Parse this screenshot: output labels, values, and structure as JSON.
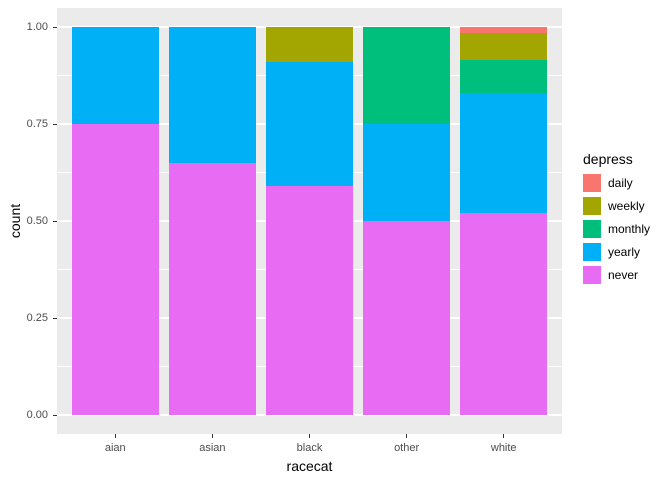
{
  "chart_data": {
    "type": "bar",
    "variant": "stacked-proportion",
    "title": "",
    "xlabel": "racecat",
    "ylabel": "count",
    "ylim": [
      0,
      1
    ],
    "grid": "on",
    "legend_position": "right",
    "yticks": [
      {
        "value": 0.0,
        "label": "0.00"
      },
      {
        "value": 0.25,
        "label": "0.25"
      },
      {
        "value": 0.5,
        "label": "0.50"
      },
      {
        "value": 0.75,
        "label": "0.75"
      },
      {
        "value": 1.0,
        "label": "1.00"
      }
    ],
    "minor_gridlines": [
      0.125,
      0.375,
      0.625,
      0.875
    ],
    "categories": [
      "aian",
      "asian",
      "black",
      "other",
      "white"
    ],
    "series": [
      {
        "name": "daily",
        "color": "#F8766D",
        "values": [
          0,
          0,
          0,
          0,
          0.015
        ]
      },
      {
        "name": "weekly",
        "color": "#A3A500",
        "values": [
          0,
          0,
          0.09,
          0,
          0.07
        ]
      },
      {
        "name": "monthly",
        "color": "#00BF7D",
        "values": [
          0,
          0,
          0,
          0.25,
          0.085
        ]
      },
      {
        "name": "yearly",
        "color": "#00B0F6",
        "values": [
          0.25,
          0.35,
          0.32,
          0.25,
          0.31
        ]
      },
      {
        "name": "never",
        "color": "#E76BF3",
        "values": [
          0.75,
          0.65,
          0.59,
          0.5,
          0.52
        ]
      }
    ],
    "stack_order_bottom_to_top": [
      "never",
      "yearly",
      "monthly",
      "weekly",
      "daily"
    ],
    "legend": {
      "title": "depress",
      "entries": [
        "daily",
        "weekly",
        "monthly",
        "yearly",
        "never"
      ]
    },
    "theme": {
      "panel_background": "#EBEBEB",
      "gridline_color": "#FFFFFF",
      "tick_label_color": "#4D4D4D",
      "axis_title_color": "#000000",
      "background": "#FFFFFF"
    }
  }
}
